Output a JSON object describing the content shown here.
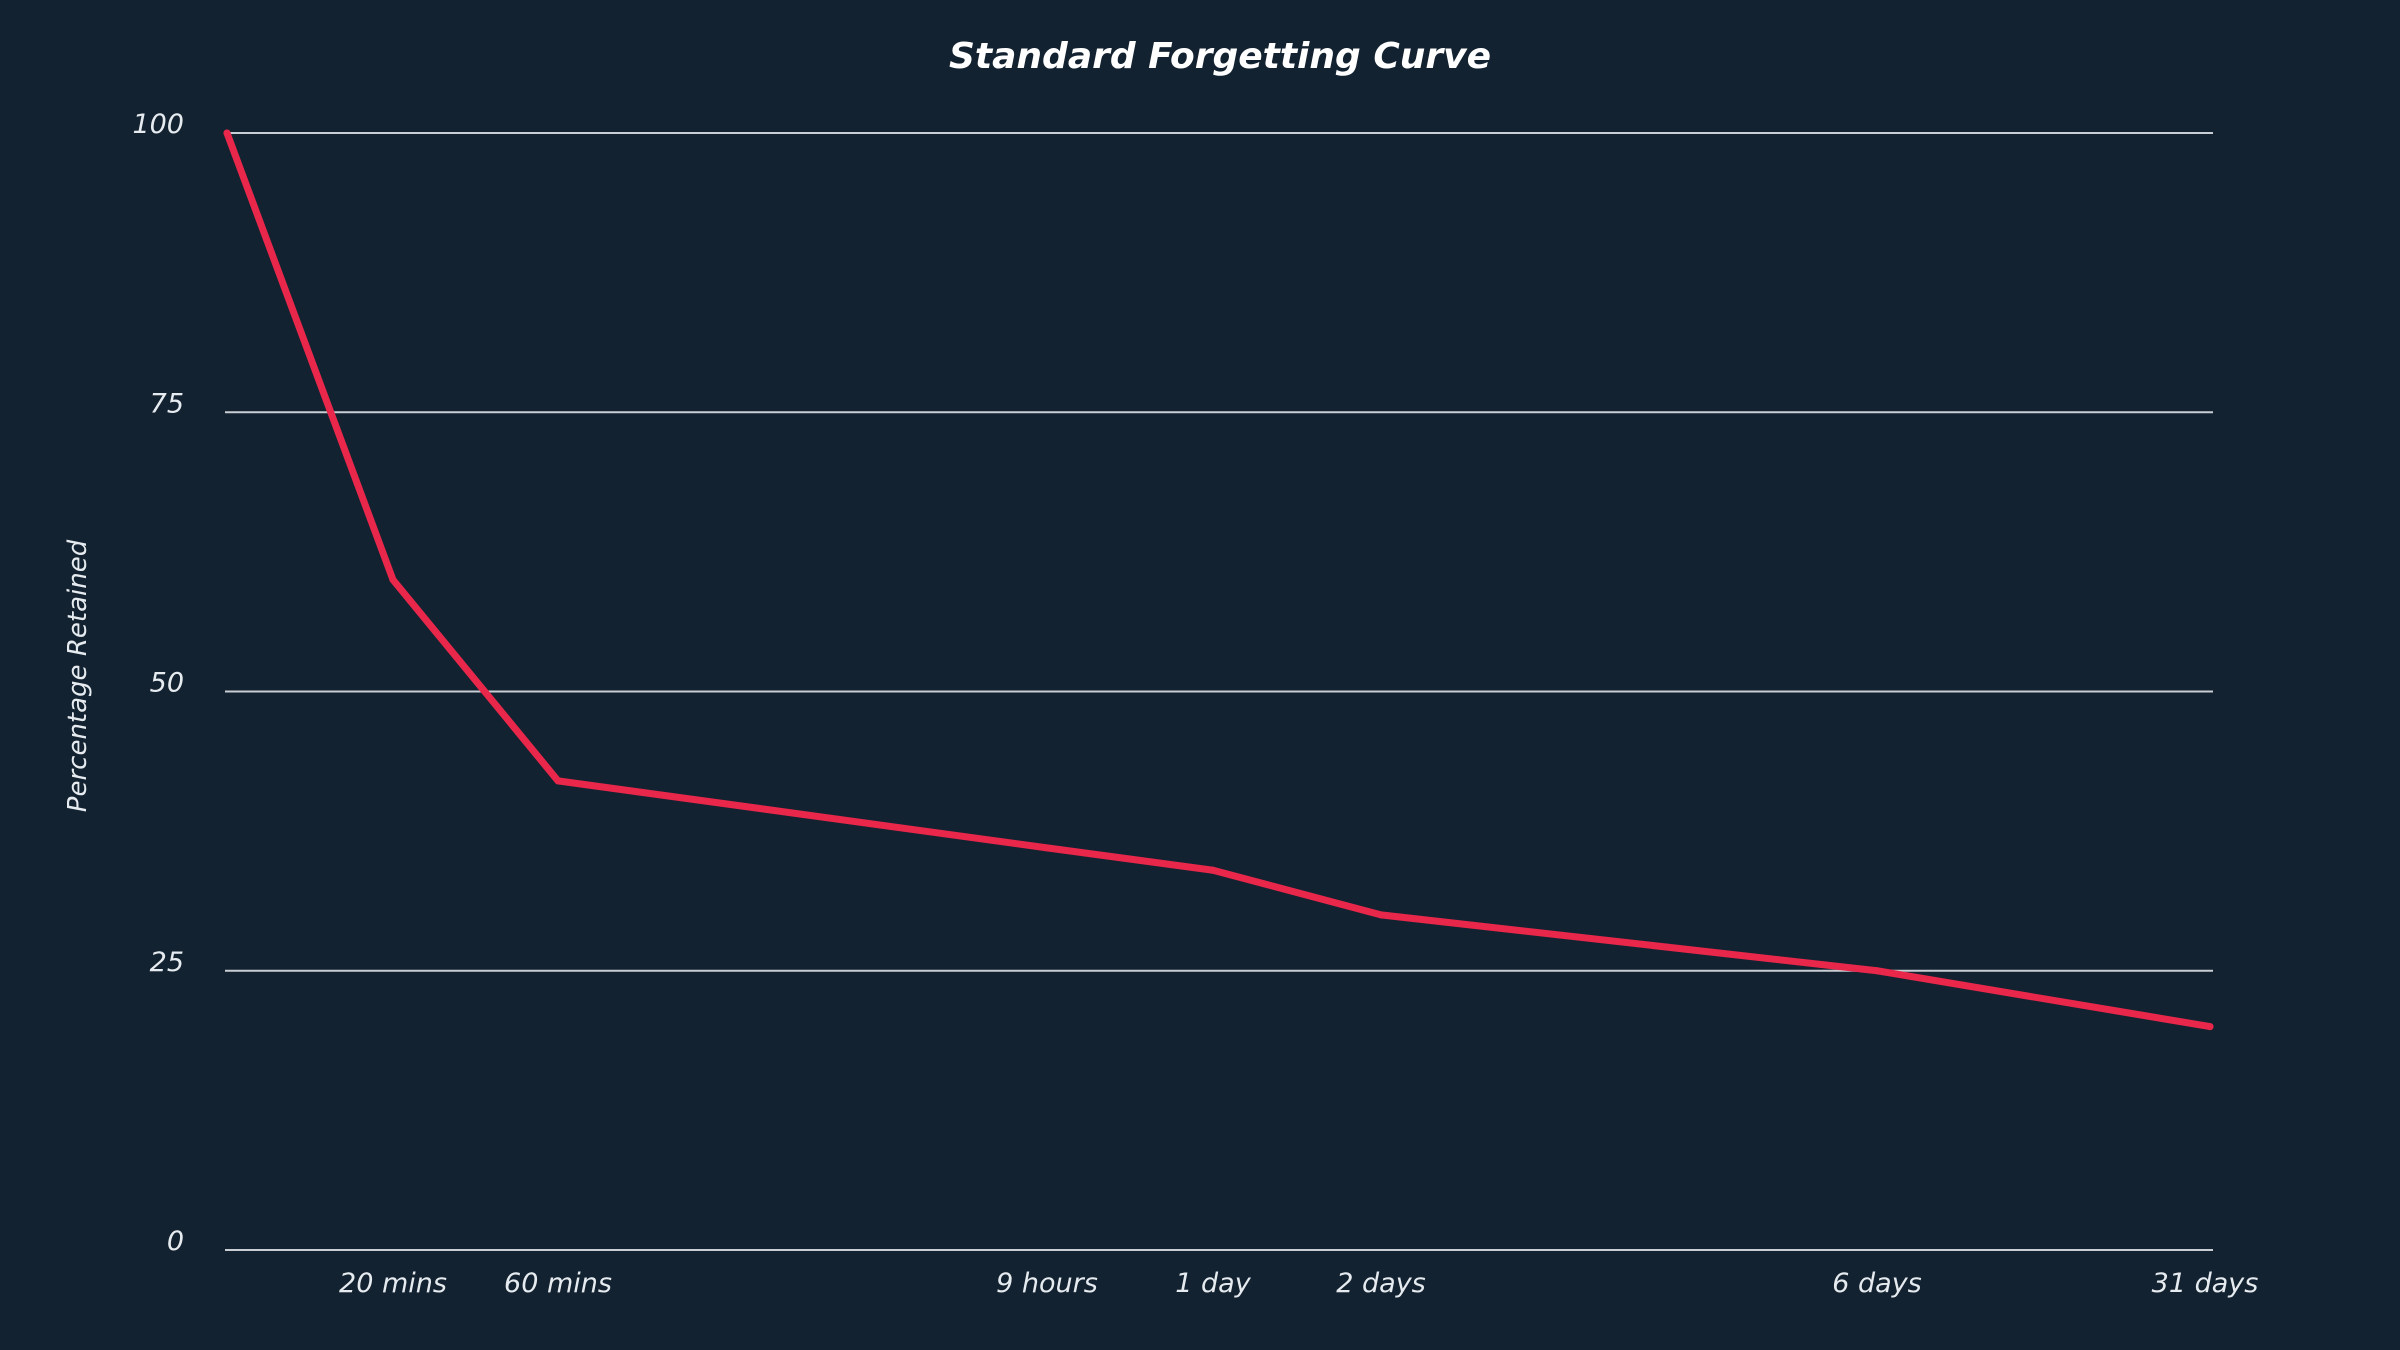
{
  "colors": {
    "background": "#132230",
    "line": "#e8274b",
    "gridline": "#c9ced4",
    "text": "#e6ebf0"
  },
  "chart_data": {
    "type": "line",
    "title": "Standard Forgetting Curve",
    "xlabel": "",
    "ylabel": "Percentage Retained",
    "ylim": [
      0,
      100
    ],
    "yticks": [
      0,
      25,
      50,
      75,
      100
    ],
    "grid": true,
    "x": [
      "0",
      "20 mins",
      "60 mins",
      "9 hours",
      "1 day",
      "2 days",
      "6 days",
      "31 days"
    ],
    "x_tick_labels": [
      "20 mins",
      "60 mins",
      "9 hours",
      "1 day",
      "2 days",
      "6 days",
      "31 days"
    ],
    "series": [
      {
        "values": [
          100,
          60,
          42,
          36,
          34,
          30,
          25,
          20
        ]
      }
    ]
  }
}
